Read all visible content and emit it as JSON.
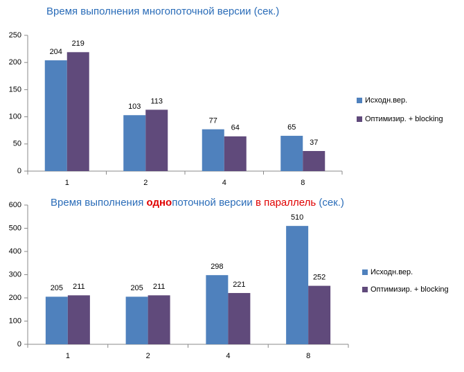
{
  "chart_data": [
    {
      "type": "bar",
      "title": "Время выполнения многопоточной версии (сек.)",
      "categories": [
        "1",
        "2",
        "4",
        "8"
      ],
      "series": [
        {
          "name": "Исходн.вер.",
          "color": "#4f81bd",
          "values": [
            204,
            103,
            77,
            65
          ]
        },
        {
          "name": "Оптимизир. + blocking",
          "color": "#604a7b",
          "values": [
            219,
            113,
            64,
            37
          ]
        }
      ],
      "ylim": [
        0,
        250
      ],
      "yticks": [
        0,
        50,
        100,
        150,
        200,
        250
      ],
      "legend": "right"
    },
    {
      "type": "bar",
      "title": [
        "Время выполнения ",
        "одно",
        "поточной версии ",
        "в параллель",
        "  (сек.)"
      ],
      "categories": [
        "1",
        "2",
        "4",
        "8"
      ],
      "series": [
        {
          "name": "Исходн.вер.",
          "color": "#4f81bd",
          "values": [
            205,
            205,
            298,
            510
          ]
        },
        {
          "name": "Оптимизир. + blocking",
          "color": "#604a7b",
          "values": [
            211,
            211,
            221,
            252
          ]
        }
      ],
      "ylim": [
        0,
        600
      ],
      "yticks": [
        0,
        100,
        200,
        300,
        400,
        500,
        600
      ],
      "legend": "right"
    }
  ]
}
